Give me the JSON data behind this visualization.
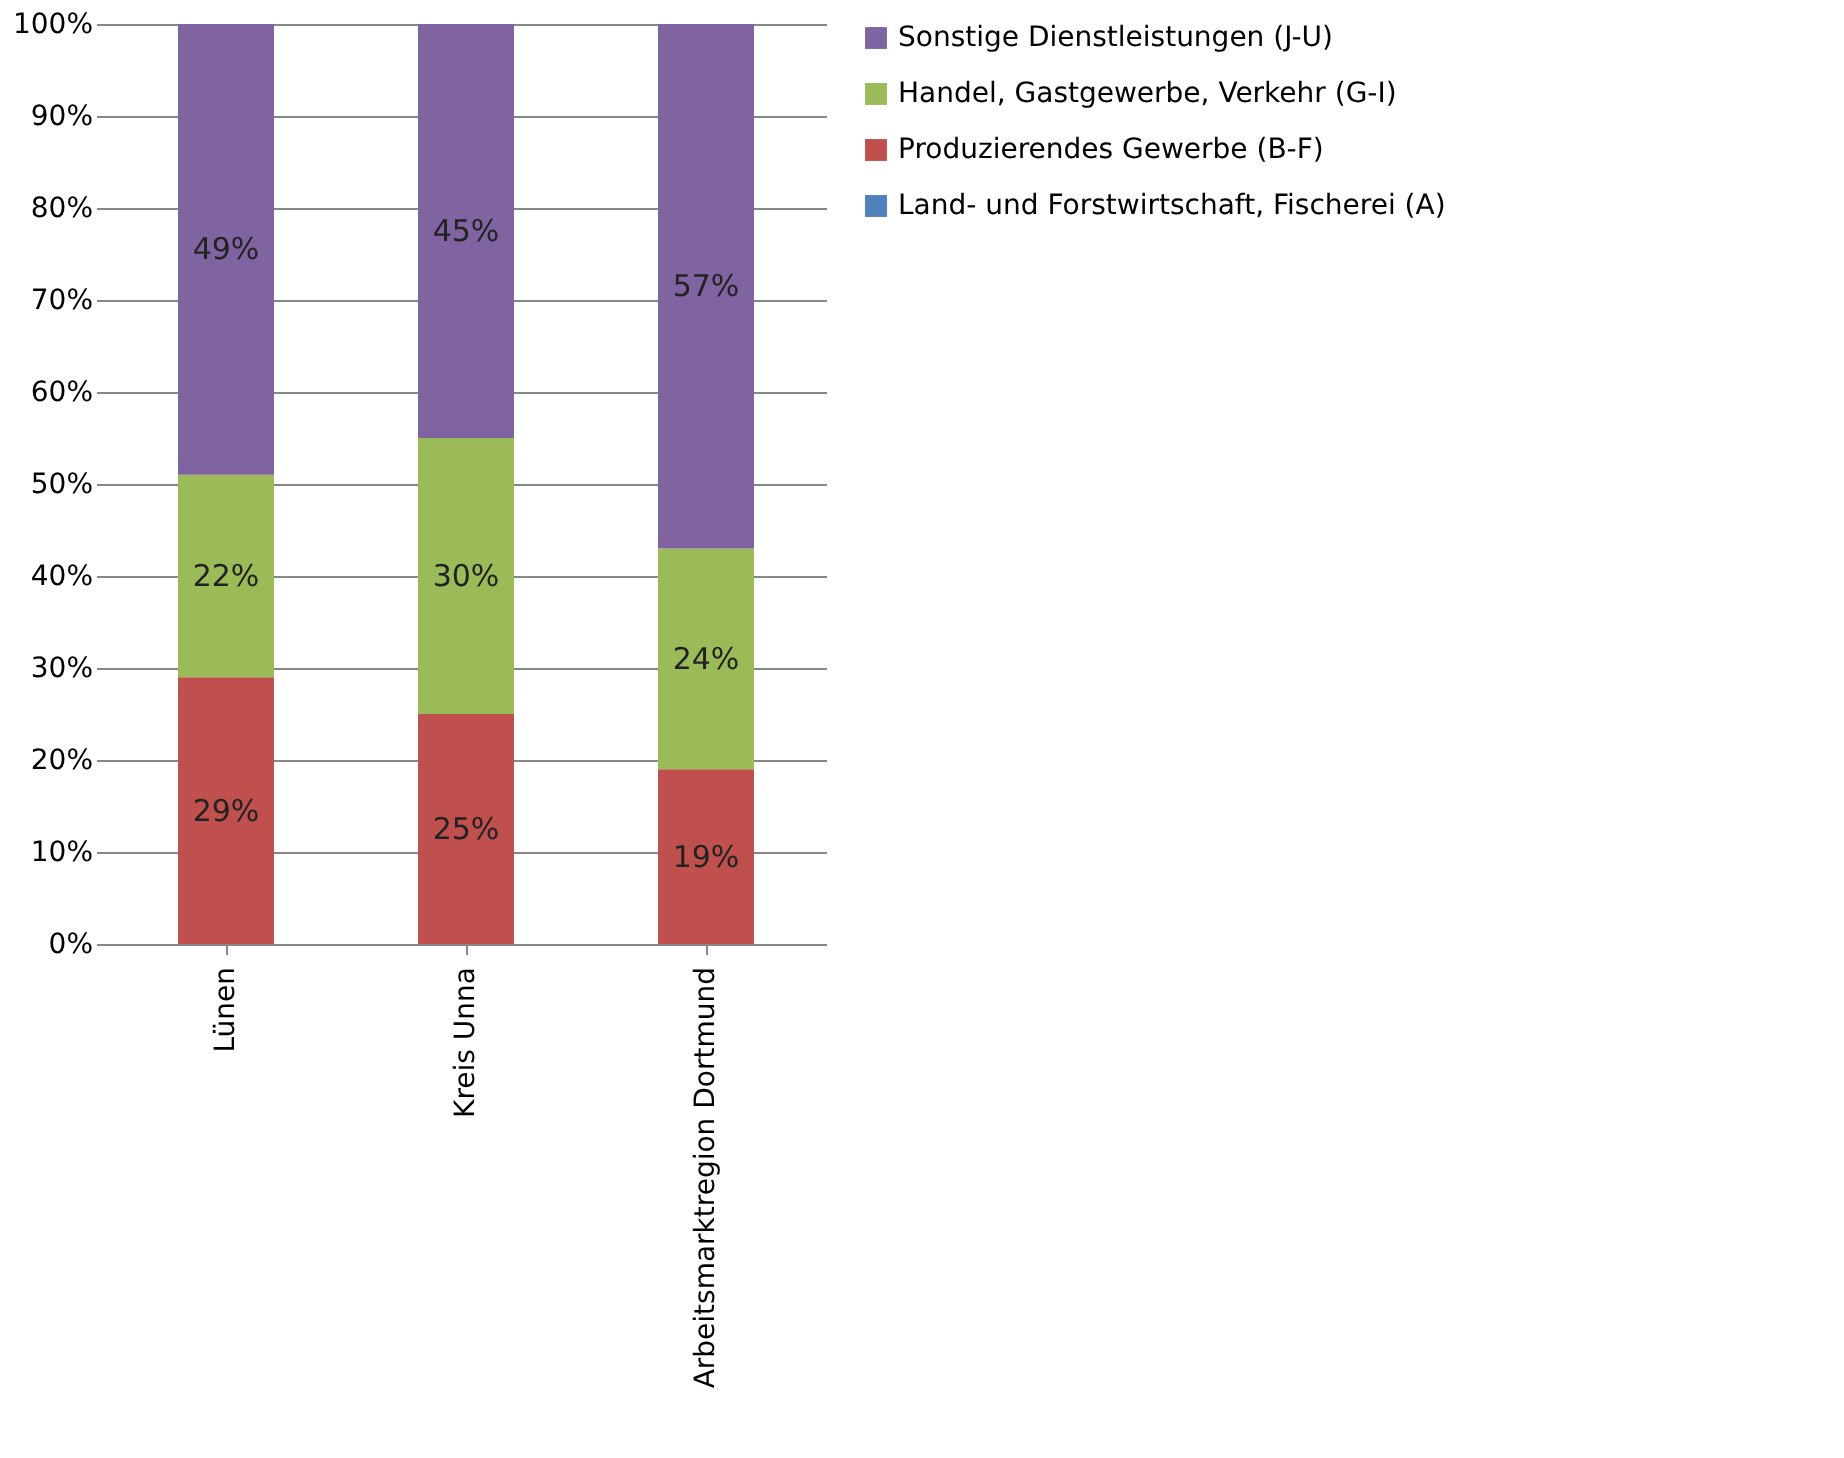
{
  "chart_data": {
    "type": "bar",
    "stacked": true,
    "categories": [
      "Lünen",
      "Kreis Unna",
      "Arbeitsmarktregion Dortmund"
    ],
    "series": [
      {
        "name": "Land- und Forstwirtschaft, Fischerei (A)",
        "color": "#4f81bd",
        "values": [
          0,
          0,
          0
        ],
        "value_labels": [
          null,
          null,
          null
        ]
      },
      {
        "name": "Produzierendes Gewerbe (B-F)",
        "color": "#c0504d",
        "values": [
          29,
          25,
          19
        ],
        "value_labels": [
          "29%",
          "25%",
          "19%"
        ]
      },
      {
        "name": "Handel, Gastgewerbe, Verkehr (G-I)",
        "color": "#9bbb59",
        "values": [
          22,
          30,
          24
        ],
        "value_labels": [
          "22%",
          "30%",
          "24%"
        ]
      },
      {
        "name": "Sonstige Dienstleistungen (J-U)",
        "color": "#8064a2",
        "values": [
          49,
          45,
          57
        ],
        "value_labels": [
          "49%",
          "45%",
          "57%"
        ]
      }
    ],
    "ylim": [
      0,
      100
    ],
    "yticks": [
      {
        "value": 0,
        "label": "0%"
      },
      {
        "value": 10,
        "label": "10%"
      },
      {
        "value": 20,
        "label": "20%"
      },
      {
        "value": 30,
        "label": "30%"
      },
      {
        "value": 40,
        "label": "40%"
      },
      {
        "value": 50,
        "label": "50%"
      },
      {
        "value": 60,
        "label": "60%"
      },
      {
        "value": 70,
        "label": "70%"
      },
      {
        "value": 80,
        "label": "80%"
      },
      {
        "value": 90,
        "label": "90%"
      },
      {
        "value": 100,
        "label": "100%"
      }
    ],
    "grid": "y",
    "legend": "top right"
  }
}
